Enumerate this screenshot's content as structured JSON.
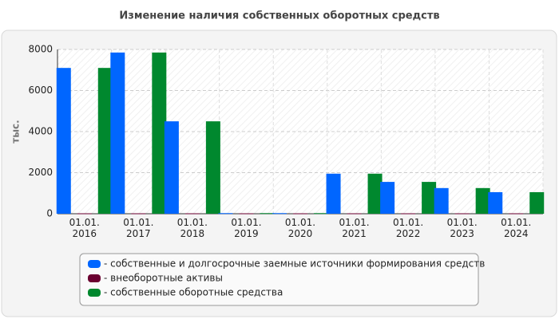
{
  "chart_data": {
    "type": "bar",
    "title": "Изменение наличия собственных оборотных средств",
    "y_label": "тыс.",
    "categories": [
      "01.01.\n2016",
      "01.01.\n2017",
      "01.01.\n2018",
      "01.01.\n2019",
      "01.01.\n2020",
      "01.01.\n2021",
      "01.01.\n2022",
      "01.01.\n2023",
      "01.01.\n2024"
    ],
    "series": [
      {
        "name": "- собственные и долгосрочные заемные источники формирования средств",
        "color": "#0066ff",
        "values": [
          7100,
          7850,
          4500,
          30,
          30,
          1950,
          1550,
          1250,
          1050
        ]
      },
      {
        "name": "- внеоборотные активы",
        "color": "#6b0030",
        "values": [
          20,
          20,
          20,
          20,
          20,
          20,
          20,
          20,
          20
        ]
      },
      {
        "name": "- собственные оборотные средства",
        "color": "#00882e",
        "values": [
          7100,
          7850,
          4500,
          30,
          30,
          1950,
          1550,
          1250,
          1050
        ]
      }
    ],
    "ylim": [
      0,
      8000
    ],
    "yticks": [
      0,
      2000,
      4000,
      6000,
      8000
    ],
    "grid": true
  }
}
